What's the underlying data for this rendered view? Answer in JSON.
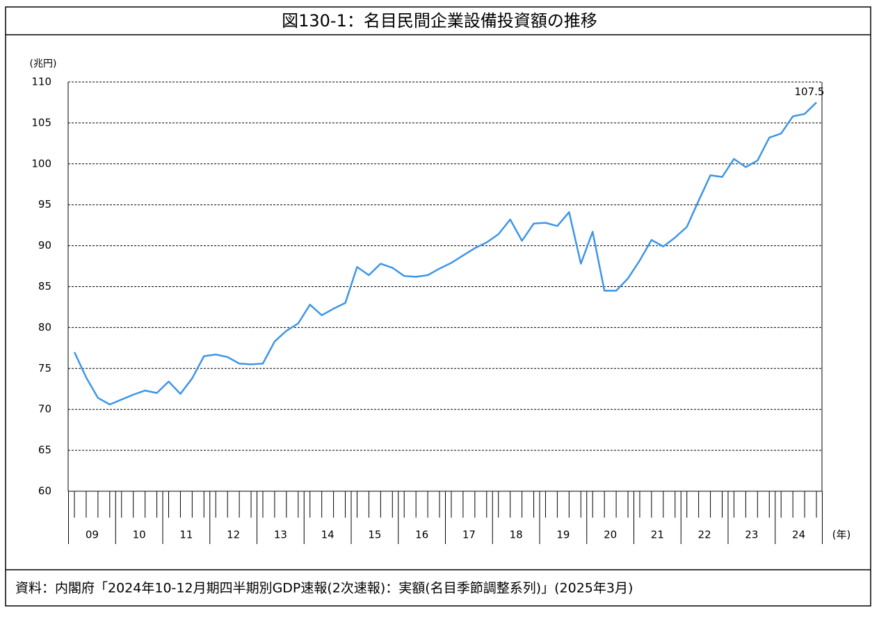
{
  "chart_data": {
    "type": "line",
    "title": "図130-1：名目民間企業設備投資額の推移",
    "y_label": "(兆円)",
    "x_unit": "(年)",
    "source": "資料：内閣府「2024年10-12月期四半期別GDP速報(2次速報)：実額(名目季節調整系列)」(2025年3月)",
    "years": [
      "09",
      "10",
      "11",
      "12",
      "13",
      "14",
      "15",
      "16",
      "17",
      "18",
      "19",
      "20",
      "21",
      "22",
      "23",
      "24"
    ],
    "values": [
      77.0,
      73.9,
      71.4,
      70.6,
      71.2,
      71.8,
      72.3,
      72.0,
      73.4,
      71.9,
      73.8,
      76.5,
      76.7,
      76.4,
      75.6,
      75.5,
      75.6,
      78.3,
      79.6,
      80.5,
      82.8,
      81.5,
      82.3,
      83.0,
      87.4,
      86.4,
      87.8,
      87.3,
      86.3,
      86.2,
      86.4,
      87.2,
      87.9,
      88.8,
      89.7,
      90.4,
      91.4,
      93.2,
      90.6,
      92.7,
      92.8,
      92.4,
      94.1,
      87.8,
      91.7,
      84.5,
      84.5,
      86.0,
      88.2,
      90.7,
      89.9,
      91.0,
      92.3,
      95.5,
      98.6,
      98.4,
      100.6,
      99.6,
      100.4,
      103.2,
      103.7,
      105.8,
      106.1,
      107.5
    ],
    "color": "#3d95e8",
    "ylim": [
      60,
      110
    ],
    "yticks": [
      60,
      65,
      70,
      75,
      80,
      85,
      90,
      95,
      100,
      105,
      110
    ],
    "grid": true
  }
}
